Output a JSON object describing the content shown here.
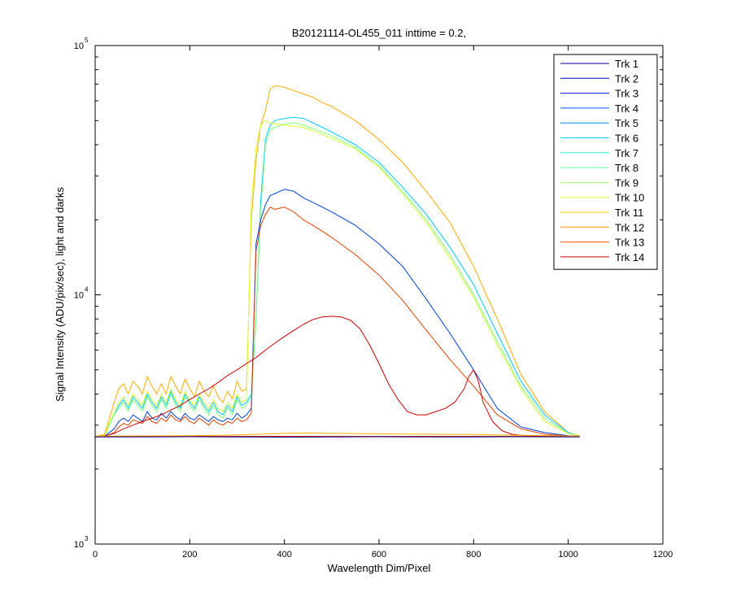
{
  "chart_data": {
    "type": "line",
    "title": "B20121114-OL455_011 inttime = 0.2,",
    "xlabel": "Wavelength Dim/Pixel",
    "ylabel": "Signal Intensity (ADU/pix/sec), light and darks",
    "xlim": [
      0,
      1200
    ],
    "ylim": [
      1000,
      100000
    ],
    "y_scale": "log",
    "x_ticks": [
      0,
      200,
      400,
      600,
      800,
      1000,
      1200
    ],
    "x_tick_labels": [
      "0",
      "200",
      "400",
      "600",
      "800",
      "1000",
      "1200"
    ],
    "y_ticks": [
      {
        "value": 1000,
        "base": "10",
        "exp": "3"
      },
      {
        "value": 10000,
        "base": "10",
        "exp": "4"
      },
      {
        "value": 100000,
        "base": "10",
        "exp": "5"
      }
    ],
    "legend_position": "top-right",
    "grid": false,
    "series": [
      {
        "name": "Trk 1",
        "color": "#00008f",
        "x": [
          0,
          1024
        ],
        "y": [
          2700,
          2700
        ]
      },
      {
        "name": "Trk 2",
        "color": "#0000cf",
        "x": [
          0,
          1024
        ],
        "y": [
          2700,
          2700
        ]
      },
      {
        "name": "Trk 3",
        "color": "#0010ff",
        "x": [
          0,
          1024
        ],
        "y": [
          2700,
          2700
        ]
      },
      {
        "name": "Trk 4",
        "color": "#0050ff",
        "x": [
          0,
          1024
        ],
        "y": [
          2700,
          2700
        ]
      },
      {
        "name": "Trk 5",
        "color": "#0090ff",
        "x": [
          0,
          1024
        ],
        "y": [
          2700,
          2700
        ]
      },
      {
        "name": "Trk 6",
        "color": "#00d0ff",
        "x": [
          0,
          1024
        ],
        "y": [
          2700,
          2700
        ]
      },
      {
        "name": "Trk 7",
        "color": "#20ffdf",
        "x": [
          0,
          1024
        ],
        "y": [
          2700,
          2700
        ]
      },
      {
        "name": "Trk 8",
        "color": "#60ff9f",
        "x": [
          0,
          1024
        ],
        "y": [
          2700,
          2700
        ]
      },
      {
        "name": "Trk 9",
        "color": "#9fff60",
        "x": [
          0,
          1024
        ],
        "y": [
          2700,
          2700
        ]
      },
      {
        "name": "Trk 10",
        "color": "#dfff20",
        "x": [
          0,
          1024
        ],
        "y": [
          2700,
          2700
        ]
      },
      {
        "name": "Trk 11",
        "color": "#ffcf00",
        "x": [
          0,
          1024
        ],
        "y": [
          2700,
          2700
        ]
      },
      {
        "name": "Trk 12",
        "color": "#ff8f00",
        "x": [
          0,
          1024
        ],
        "y": [
          2700,
          2700
        ]
      },
      {
        "name": "Trk 13",
        "color": "#ff5000",
        "x": [
          0,
          1024
        ],
        "y": [
          2700,
          2700
        ]
      },
      {
        "name": "Trk 14",
        "color": "#cf0000",
        "x": [
          0,
          1024
        ],
        "y": [
          2700,
          2700
        ]
      },
      {
        "name": "",
        "color": "#ffaa00",
        "x": [
          0,
          20,
          40,
          50,
          60,
          70,
          80,
          90,
          100,
          110,
          120,
          130,
          140,
          150,
          160,
          170,
          180,
          190,
          200,
          210,
          220,
          230,
          240,
          250,
          260,
          270,
          280,
          290,
          300,
          310,
          320,
          330,
          340,
          350,
          360,
          370,
          380,
          400,
          420,
          440,
          460,
          480,
          500,
          550,
          600,
          650,
          700,
          750,
          800,
          850,
          900,
          950,
          1000,
          1024
        ],
        "y": [
          2700,
          2750,
          3700,
          4200,
          4400,
          4000,
          4500,
          4300,
          4000,
          4700,
          4300,
          4000,
          4400,
          4000,
          4700,
          4300,
          4000,
          4600,
          4200,
          3900,
          4500,
          4100,
          3900,
          4300,
          3900,
          3700,
          4100,
          3800,
          4500,
          4100,
          4200,
          20000,
          35000,
          48000,
          55000,
          67000,
          69000,
          68000,
          66000,
          64000,
          62000,
          59000,
          57000,
          50000,
          42000,
          34000,
          26000,
          19500,
          13000,
          8000,
          4800,
          3400,
          2800,
          2720
        ]
      },
      {
        "name": "",
        "color": "#00c8ff",
        "x": [
          0,
          20,
          40,
          50,
          60,
          70,
          80,
          90,
          100,
          110,
          120,
          130,
          140,
          150,
          160,
          170,
          180,
          190,
          200,
          210,
          220,
          230,
          240,
          250,
          260,
          270,
          280,
          290,
          300,
          310,
          320,
          330,
          340,
          350,
          360,
          370,
          380,
          400,
          420,
          440,
          460,
          480,
          500,
          550,
          600,
          650,
          700,
          750,
          800,
          850,
          900,
          950,
          1000,
          1024
        ],
        "y": [
          2700,
          2720,
          3300,
          3600,
          3800,
          3500,
          3900,
          3700,
          3500,
          4000,
          3700,
          3500,
          3900,
          3600,
          4100,
          3700,
          3500,
          4000,
          3700,
          3500,
          3900,
          3600,
          3400,
          3700,
          3400,
          3300,
          3600,
          3400,
          3900,
          3600,
          3700,
          4000,
          8000,
          24000,
          42000,
          48000,
          50000,
          51000,
          51500,
          51000,
          49000,
          47000,
          45000,
          40000,
          34000,
          27000,
          21000,
          15500,
          11000,
          7000,
          4500,
          3300,
          2800,
          2720
        ]
      },
      {
        "name": "",
        "color": "#80ff80",
        "x": [
          0,
          20,
          40,
          50,
          60,
          70,
          80,
          90,
          100,
          110,
          120,
          130,
          140,
          150,
          160,
          170,
          180,
          190,
          200,
          210,
          220,
          230,
          240,
          250,
          260,
          270,
          280,
          290,
          300,
          310,
          320,
          330,
          340,
          350,
          360,
          370,
          380,
          400,
          420,
          440,
          460,
          480,
          500,
          550,
          600,
          650,
          700,
          750,
          800,
          850,
          900,
          950,
          1000,
          1024
        ],
        "y": [
          2700,
          2720,
          3300,
          3500,
          3700,
          3400,
          3800,
          3600,
          3400,
          3900,
          3600,
          3400,
          3800,
          3500,
          4000,
          3600,
          3400,
          3900,
          3600,
          3400,
          3800,
          3500,
          3300,
          3600,
          3300,
          3200,
          3500,
          3300,
          3800,
          3500,
          3600,
          3900,
          8000,
          22000,
          40000,
          46000,
          47000,
          48500,
          49000,
          48000,
          46500,
          45000,
          43500,
          39000,
          33000,
          26000,
          20000,
          14500,
          10000,
          6500,
          4300,
          3200,
          2780,
          2720
        ]
      },
      {
        "name": "",
        "color": "#d8ff30",
        "x": [
          0,
          20,
          40,
          50,
          60,
          70,
          80,
          90,
          100,
          110,
          120,
          130,
          140,
          150,
          160,
          170,
          180,
          190,
          200,
          210,
          220,
          230,
          240,
          250,
          260,
          270,
          280,
          290,
          300,
          310,
          320,
          330,
          340,
          350,
          360,
          370,
          380,
          400,
          420,
          440,
          460,
          480,
          500,
          550,
          600,
          650,
          700,
          750,
          800,
          850,
          900,
          950,
          1000,
          1024
        ],
        "y": [
          2700,
          2720,
          3400,
          3700,
          3900,
          3600,
          4000,
          3800,
          3600,
          4100,
          3800,
          3600,
          4000,
          3700,
          4200,
          3800,
          3600,
          4100,
          3800,
          3600,
          4000,
          3700,
          3500,
          3800,
          3500,
          3400,
          3700,
          3500,
          4000,
          3700,
          3800,
          23000,
          39000,
          48000,
          50000,
          49000,
          48500,
          48000,
          47500,
          47000,
          45500,
          44000,
          42500,
          38500,
          32500,
          25500,
          19500,
          14000,
          9800,
          6300,
          4200,
          3100,
          2780,
          2720
        ]
      },
      {
        "name": "",
        "color": "#0040dd",
        "x": [
          0,
          20,
          40,
          50,
          60,
          70,
          80,
          90,
          100,
          110,
          120,
          130,
          140,
          150,
          160,
          170,
          180,
          190,
          200,
          210,
          220,
          230,
          240,
          250,
          260,
          270,
          280,
          290,
          300,
          310,
          320,
          330,
          340,
          350,
          360,
          370,
          380,
          400,
          420,
          440,
          460,
          480,
          500,
          550,
          600,
          650,
          700,
          750,
          800,
          850,
          900,
          950,
          1000,
          1024
        ],
        "y": [
          2700,
          2710,
          2900,
          3100,
          3200,
          3100,
          3300,
          3200,
          3100,
          3400,
          3200,
          3150,
          3350,
          3200,
          3400,
          3250,
          3150,
          3350,
          3200,
          3150,
          3300,
          3200,
          3100,
          3250,
          3150,
          3100,
          3200,
          3150,
          3350,
          3200,
          3300,
          3500,
          16000,
          20000,
          23000,
          25000,
          25500,
          26500,
          26000,
          24500,
          23500,
          22500,
          21500,
          19000,
          16000,
          13000,
          9600,
          7000,
          5000,
          3500,
          2950,
          2800,
          2720,
          2710
        ]
      },
      {
        "name": "",
        "color": "#e04000",
        "x": [
          0,
          20,
          40,
          50,
          60,
          70,
          80,
          90,
          100,
          110,
          120,
          130,
          140,
          150,
          160,
          170,
          180,
          190,
          200,
          210,
          220,
          230,
          240,
          250,
          260,
          270,
          280,
          290,
          300,
          310,
          320,
          330,
          340,
          350,
          360,
          370,
          380,
          400,
          420,
          440,
          460,
          480,
          500,
          550,
          600,
          650,
          700,
          750,
          800,
          850,
          900,
          950,
          1000,
          1024
        ],
        "y": [
          2700,
          2700,
          2800,
          2950,
          3050,
          3000,
          3150,
          3100,
          3050,
          3250,
          3100,
          3050,
          3200,
          3100,
          3300,
          3150,
          3100,
          3250,
          3100,
          3050,
          3200,
          3100,
          3000,
          3150,
          3050,
          3000,
          3100,
          3050,
          3200,
          3100,
          3150,
          3350,
          15000,
          19000,
          21000,
          22500,
          22000,
          22500,
          21500,
          20000,
          19000,
          18000,
          17000,
          14500,
          12000,
          9500,
          7200,
          5500,
          4300,
          3300,
          2900,
          2760,
          2710,
          2705
        ]
      },
      {
        "name": "",
        "color": "#cc0000",
        "x": [
          0,
          20,
          40,
          60,
          80,
          100,
          120,
          140,
          160,
          180,
          200,
          220,
          240,
          260,
          280,
          300,
          320,
          340,
          360,
          380,
          400,
          420,
          440,
          460,
          480,
          500,
          520,
          540,
          560,
          580,
          600,
          620,
          640,
          660,
          680,
          700,
          720,
          740,
          760,
          780,
          790,
          800,
          810,
          820,
          840,
          860,
          880,
          900,
          950,
          1000,
          1024
        ],
        "y": [
          2700,
          2710,
          2780,
          2900,
          3000,
          3100,
          3200,
          3300,
          3450,
          3600,
          3800,
          4000,
          4200,
          4450,
          4750,
          5000,
          5300,
          5600,
          6000,
          6400,
          6800,
          7200,
          7600,
          7950,
          8150,
          8200,
          8150,
          7900,
          7300,
          6300,
          5300,
          4400,
          3800,
          3400,
          3300,
          3300,
          3400,
          3500,
          3700,
          4200,
          4700,
          5000,
          4500,
          3700,
          3100,
          2850,
          2760,
          2730,
          2710,
          2705,
          2700
        ]
      },
      {
        "name": "",
        "color": "#ffaa00",
        "x": [
          0,
          200,
          300,
          400,
          450,
          500,
          600,
          700,
          800,
          900,
          1024
        ],
        "y": [
          2710,
          2720,
          2740,
          2780,
          2790,
          2780,
          2770,
          2760,
          2750,
          2730,
          2710
        ]
      },
      {
        "name": "",
        "color": "#00008f",
        "x": [
          0,
          100,
          200,
          300,
          400,
          500,
          600,
          700,
          800,
          900,
          1024
        ],
        "y": [
          2690,
          2690,
          2695,
          2690,
          2685,
          2690,
          2695,
          2690,
          2690,
          2695,
          2690
        ]
      }
    ]
  }
}
